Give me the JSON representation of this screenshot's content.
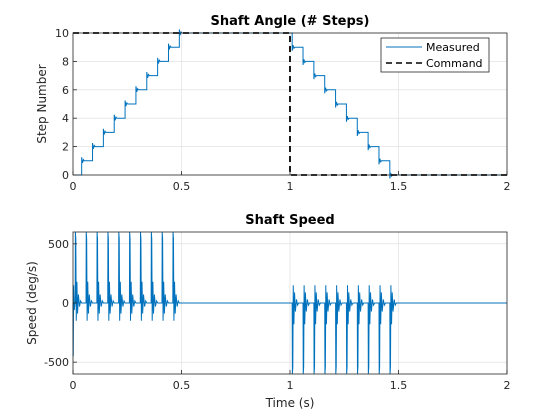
{
  "chart_data": [
    {
      "type": "line",
      "title": "Shaft Angle (# Steps)",
      "xlabel": "",
      "ylabel": "Step Number",
      "xlim": [
        0,
        2
      ],
      "ylim": [
        0,
        10
      ],
      "x_ticks": [
        "0",
        "0.5",
        "1",
        "1.5",
        "2"
      ],
      "y_ticks": [
        "0",
        "2",
        "4",
        "6",
        "8",
        "10"
      ],
      "grid": true,
      "legend_position": "top-right",
      "legend": [
        "Measured",
        "Command"
      ],
      "colors": {
        "measured": "#0072BD",
        "command": "#000000"
      },
      "series": [
        {
          "name": "Measured",
          "style": "solid staircase",
          "steps_up": {
            "levels": [
              0,
              1,
              2,
              3,
              4,
              5,
              6,
              7,
              8,
              9,
              10
            ],
            "step_times": [
              0.04,
              0.09,
              0.14,
              0.19,
              0.24,
              0.29,
              0.34,
              0.39,
              0.44,
              0.49
            ]
          },
          "steps_down": {
            "levels": [
              10,
              9,
              8,
              7,
              6,
              5,
              4,
              3,
              2,
              1,
              0
            ],
            "step_times": [
              1.01,
              1.06,
              1.11,
              1.16,
              1.21,
              1.26,
              1.31,
              1.36,
              1.41,
              1.46
            ]
          },
          "x": [
            0,
            0.04,
            0.5,
            1.0,
            1.01,
            1.5,
            2.0
          ],
          "y": [
            0,
            1,
            10,
            10,
            9,
            0,
            0
          ]
        },
        {
          "name": "Command",
          "style": "dashed",
          "x": [
            0,
            1,
            1,
            2
          ],
          "y": [
            10,
            10,
            0,
            0
          ]
        }
      ]
    },
    {
      "type": "line",
      "title": "Shaft Speed",
      "xlabel": "Time (s)",
      "ylabel": "Speed (deg/s)",
      "xlim": [
        0,
        2
      ],
      "ylim": [
        -600,
        600
      ],
      "x_ticks": [
        "0",
        "0.5",
        "1",
        "1.5",
        "2"
      ],
      "y_ticks": [
        "-500",
        "0",
        "500"
      ],
      "grid": true,
      "colors": {
        "speed": "#0072BD"
      },
      "series": [
        {
          "name": "",
          "style": "solid",
          "pulse_times_positive": [
            0.01,
            0.06,
            0.11,
            0.16,
            0.21,
            0.26,
            0.31,
            0.36,
            0.41,
            0.46
          ],
          "pulse_times_negative": [
            1.01,
            1.06,
            1.11,
            1.16,
            1.21,
            1.26,
            1.31,
            1.36,
            1.41,
            1.46
          ],
          "peak_value": 600,
          "x": [
            0,
            0.5,
            1.0,
            1.5,
            2.0
          ],
          "y": [
            0,
            0,
            0,
            0,
            0
          ]
        }
      ]
    }
  ]
}
